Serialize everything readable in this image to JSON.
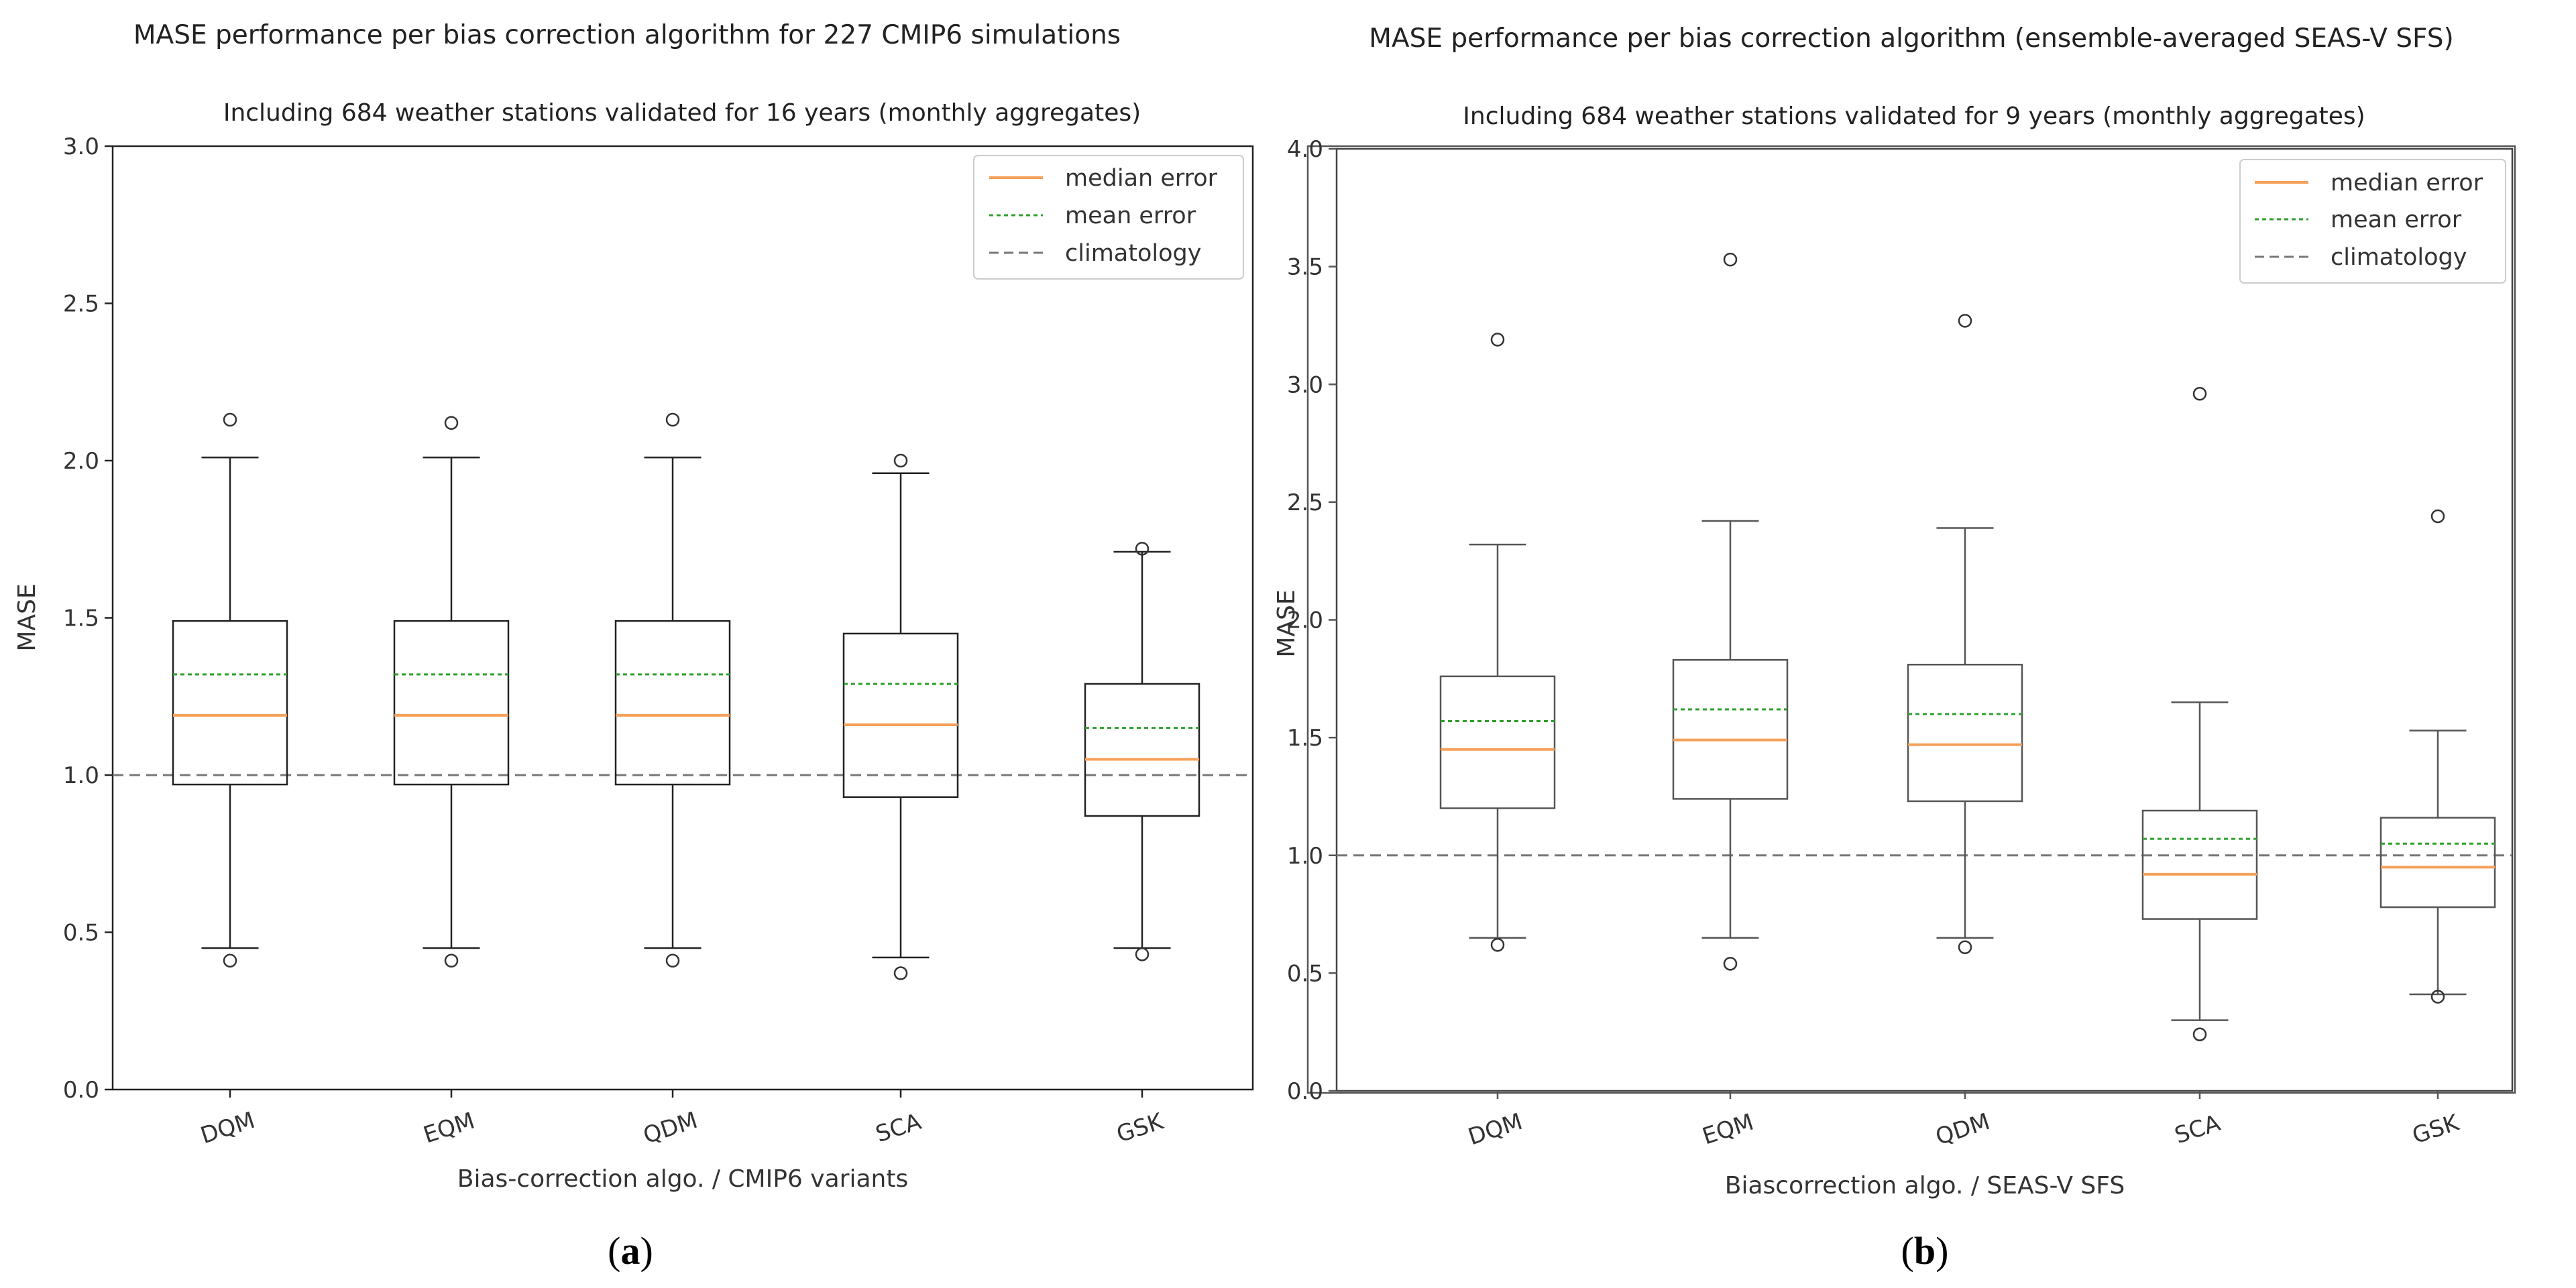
{
  "panels": [
    {
      "panel_label": "(a)",
      "label_letter": "a",
      "chart_data": {
        "type": "box",
        "title": "MASE performance per bias correction algorithm for 227 CMIP6 simulations",
        "subtitle": "Including 684 weather stations validated for 16 years (monthly aggregates)",
        "xlabel": "Bias-correction algo. / CMIP6 variants",
        "ylabel": "MASE",
        "ylim": [
          0.0,
          3.0
        ],
        "yticks": [
          0.0,
          0.5,
          1.0,
          1.5,
          2.0,
          2.5,
          3.0
        ],
        "ytick_labels": [
          "0.0",
          "0.5",
          "1.0",
          "1.5",
          "2.0",
          "2.5",
          "3.0"
        ],
        "categories": [
          "DQM",
          "EQM",
          "QDM",
          "SCA",
          "GSK"
        ],
        "boxes": [
          {
            "whisker_low": 0.45,
            "q1": 0.97,
            "median": 1.19,
            "mean": 1.32,
            "q3": 1.49,
            "whisker_high": 2.01,
            "fliers": [
              0.41,
              2.13
            ]
          },
          {
            "whisker_low": 0.45,
            "q1": 0.97,
            "median": 1.19,
            "mean": 1.32,
            "q3": 1.49,
            "whisker_high": 2.01,
            "fliers": [
              0.41,
              2.12
            ]
          },
          {
            "whisker_low": 0.45,
            "q1": 0.97,
            "median": 1.19,
            "mean": 1.32,
            "q3": 1.49,
            "whisker_high": 2.01,
            "fliers": [
              0.41,
              2.13
            ]
          },
          {
            "whisker_low": 0.42,
            "q1": 0.93,
            "median": 1.16,
            "mean": 1.29,
            "q3": 1.45,
            "whisker_high": 1.96,
            "fliers": [
              0.37,
              2.0
            ]
          },
          {
            "whisker_low": 0.45,
            "q1": 0.87,
            "median": 1.05,
            "mean": 1.15,
            "q3": 1.29,
            "whisker_high": 1.71,
            "fliers": [
              0.43,
              1.72
            ]
          }
        ],
        "reference_line": 1.0,
        "legend": [
          "median error",
          "mean error",
          "climatology"
        ],
        "legend_position": "top-right"
      }
    },
    {
      "panel_label": "(b)",
      "label_letter": "b",
      "chart_data": {
        "type": "box",
        "title": "MASE performance per bias correction algorithm (ensemble-averaged SEAS-V SFS)",
        "subtitle": "Including 684 weather stations validated for 9 years (monthly aggregates)",
        "xlabel": "Biascorrection algo. / SEAS-V SFS",
        "ylabel": "MASE",
        "ylim": [
          0.0,
          4.0
        ],
        "yticks": [
          0.0,
          0.5,
          1.0,
          1.5,
          2.0,
          2.5,
          3.0,
          3.5,
          4.0
        ],
        "ytick_labels": [
          "0.0",
          "0.5",
          "1.0",
          "1.5",
          "2.0",
          "2.5",
          "3.0",
          "3.5",
          "4.0"
        ],
        "categories": [
          "DQM",
          "EQM",
          "QDM",
          "SCA",
          "GSK"
        ],
        "boxes": [
          {
            "whisker_low": 0.65,
            "q1": 1.2,
            "median": 1.45,
            "mean": 1.57,
            "q3": 1.76,
            "whisker_high": 2.32,
            "fliers": [
              0.62,
              3.19
            ]
          },
          {
            "whisker_low": 0.65,
            "q1": 1.24,
            "median": 1.49,
            "mean": 1.62,
            "q3": 1.83,
            "whisker_high": 2.42,
            "fliers": [
              0.54,
              3.53
            ]
          },
          {
            "whisker_low": 0.65,
            "q1": 1.23,
            "median": 1.47,
            "mean": 1.6,
            "q3": 1.81,
            "whisker_high": 2.39,
            "fliers": [
              0.61,
              3.27
            ]
          },
          {
            "whisker_low": 0.3,
            "q1": 0.73,
            "median": 0.92,
            "mean": 1.07,
            "q3": 1.19,
            "whisker_high": 1.65,
            "fliers": [
              0.24,
              2.96
            ]
          },
          {
            "whisker_low": 0.41,
            "q1": 0.78,
            "median": 0.95,
            "mean": 1.05,
            "q3": 1.16,
            "whisker_high": 1.53,
            "fliers": [
              0.4,
              2.44
            ]
          }
        ],
        "reference_line": 1.0,
        "legend": [
          "median error",
          "mean error",
          "climatology"
        ],
        "legend_position": "top-right"
      }
    }
  ],
  "colors": {
    "median": "#f5a05a",
    "mean": "#2ca02c",
    "climatology": "#777777",
    "box": "#333333"
  }
}
